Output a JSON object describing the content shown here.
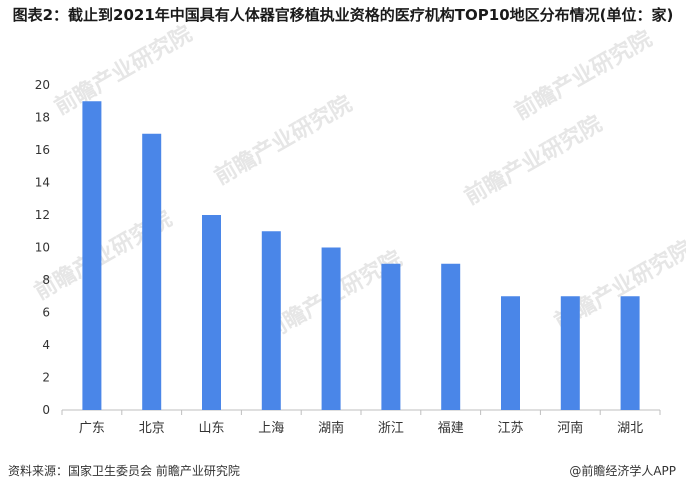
{
  "title": "图表2：截止到2021年中国具有人体器官移植执业资格的医疗机构TOP10地区分布情况(单位：家)",
  "footer": {
    "source": "资料来源：国家卫生委员会 前瞻产业研究院",
    "brand": "@前瞻经济学人APP"
  },
  "watermark": {
    "text": "前瞻产业研究院"
  },
  "colors": {
    "bar": "#4a86e8",
    "axis": "#bfbfbf"
  },
  "chart_data": {
    "type": "bar",
    "title": "图表2：截止到2021年中国具有人体器官移植执业资格的医疗机构TOP10地区分布情况(单位：家)",
    "categories": [
      "广东",
      "北京",
      "山东",
      "上海",
      "湖南",
      "浙江",
      "福建",
      "江苏",
      "河南",
      "湖北"
    ],
    "values": [
      19,
      17,
      12,
      11,
      10,
      9,
      9,
      7,
      7,
      7
    ],
    "yticks": [
      0,
      2,
      4,
      6,
      8,
      10,
      12,
      14,
      16,
      18,
      20
    ],
    "ylim": [
      0,
      20
    ],
    "xlabel": "",
    "ylabel": "",
    "grid": false,
    "legend": "none"
  }
}
